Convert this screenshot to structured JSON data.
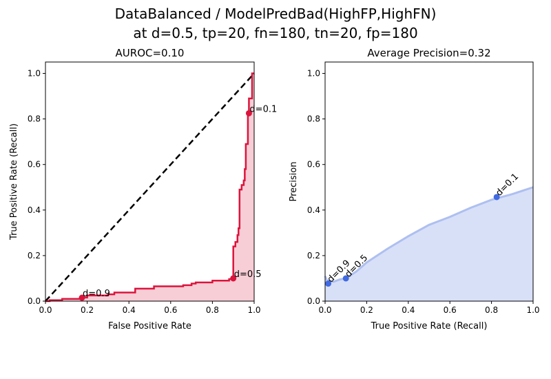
{
  "suptitle_line1": "DataBalanced / ModelPredBad(HighFP,HighFN)",
  "suptitle_line2": "at d=0.5, tp=20, fn=180, tn=20, fp=180",
  "chart_data": [
    {
      "type": "line",
      "title": "AUROC=0.10",
      "xlabel": "False Positive Rate",
      "ylabel": "True Positive Rate (Recall)",
      "xlim": [
        0,
        1.0
      ],
      "ylim": [
        0,
        1.05
      ],
      "xticks": [
        "0.0",
        "0.2",
        "0.4",
        "0.6",
        "0.8",
        "1.0"
      ],
      "yticks": [
        "0.0",
        "0.2",
        "0.4",
        "0.6",
        "0.8",
        "1.0"
      ],
      "line_color": "#dc143c",
      "fill_color": "#f7cdd6",
      "diagonal": [
        [
          0,
          0
        ],
        [
          1,
          1
        ]
      ],
      "points": [
        [
          0,
          0
        ],
        [
          0.02,
          0
        ],
        [
          0.02,
          0.004
        ],
        [
          0.08,
          0.004
        ],
        [
          0.08,
          0.01
        ],
        [
          0.18,
          0.01
        ],
        [
          0.18,
          0.016
        ],
        [
          0.2,
          0.016
        ],
        [
          0.2,
          0.025
        ],
        [
          0.3,
          0.025
        ],
        [
          0.3,
          0.03
        ],
        [
          0.33,
          0.03
        ],
        [
          0.33,
          0.038
        ],
        [
          0.43,
          0.038
        ],
        [
          0.43,
          0.055
        ],
        [
          0.52,
          0.055
        ],
        [
          0.52,
          0.065
        ],
        [
          0.66,
          0.065
        ],
        [
          0.66,
          0.07
        ],
        [
          0.7,
          0.07
        ],
        [
          0.7,
          0.077
        ],
        [
          0.72,
          0.077
        ],
        [
          0.72,
          0.082
        ],
        [
          0.8,
          0.082
        ],
        [
          0.8,
          0.09
        ],
        [
          0.88,
          0.09
        ],
        [
          0.88,
          0.097
        ],
        [
          0.9,
          0.097
        ],
        [
          0.9,
          0.2
        ],
        [
          0.9,
          0.24
        ],
        [
          0.91,
          0.24
        ],
        [
          0.91,
          0.26
        ],
        [
          0.92,
          0.26
        ],
        [
          0.92,
          0.29
        ],
        [
          0.925,
          0.29
        ],
        [
          0.925,
          0.32
        ],
        [
          0.93,
          0.32
        ],
        [
          0.93,
          0.49
        ],
        [
          0.94,
          0.49
        ],
        [
          0.94,
          0.51
        ],
        [
          0.95,
          0.51
        ],
        [
          0.95,
          0.53
        ],
        [
          0.955,
          0.53
        ],
        [
          0.955,
          0.58
        ],
        [
          0.96,
          0.58
        ],
        [
          0.96,
          0.69
        ],
        [
          0.97,
          0.69
        ],
        [
          0.97,
          0.83
        ],
        [
          0.975,
          0.83
        ],
        [
          0.975,
          0.89
        ],
        [
          0.99,
          0.89
        ],
        [
          0.99,
          1.0
        ],
        [
          1.0,
          1.0
        ]
      ],
      "markers": [
        {
          "label": "d=0.9",
          "x": 0.175,
          "y": 0.015
        },
        {
          "label": "d=0.5",
          "x": 0.9,
          "y": 0.1
        },
        {
          "label": "d=0.1",
          "x": 0.975,
          "y": 0.825
        }
      ]
    },
    {
      "type": "area",
      "title": "Average Precision=0.32",
      "xlabel": "True Positive Rate (Recall)",
      "ylabel": "Precision",
      "xlim": [
        0,
        1.0
      ],
      "ylim": [
        0,
        1.05
      ],
      "xticks": [
        "0.0",
        "0.2",
        "0.4",
        "0.6",
        "0.8",
        "1.0"
      ],
      "yticks": [
        "0.0",
        "0.2",
        "0.4",
        "0.6",
        "0.8",
        "1.0"
      ],
      "line_color": "#aebff0",
      "fill_color": "#d8e0f8",
      "marker_color": "#4169e1",
      "points": [
        [
          0,
          0.11
        ],
        [
          0.01,
          0.09
        ],
        [
          0.04,
          0.085
        ],
        [
          0.07,
          0.095
        ],
        [
          0.1,
          0.1
        ],
        [
          0.15,
          0.13
        ],
        [
          0.2,
          0.17
        ],
        [
          0.3,
          0.23
        ],
        [
          0.4,
          0.285
        ],
        [
          0.5,
          0.335
        ],
        [
          0.6,
          0.37
        ],
        [
          0.7,
          0.41
        ],
        [
          0.8,
          0.445
        ],
        [
          0.9,
          0.47
        ],
        [
          1.0,
          0.5
        ]
      ],
      "markers": [
        {
          "label": "d=0.9",
          "x": 0.015,
          "y": 0.077
        },
        {
          "label": "d=0.5",
          "x": 0.1,
          "y": 0.1
        },
        {
          "label": "d=0.1",
          "x": 0.825,
          "y": 0.457
        }
      ]
    }
  ]
}
